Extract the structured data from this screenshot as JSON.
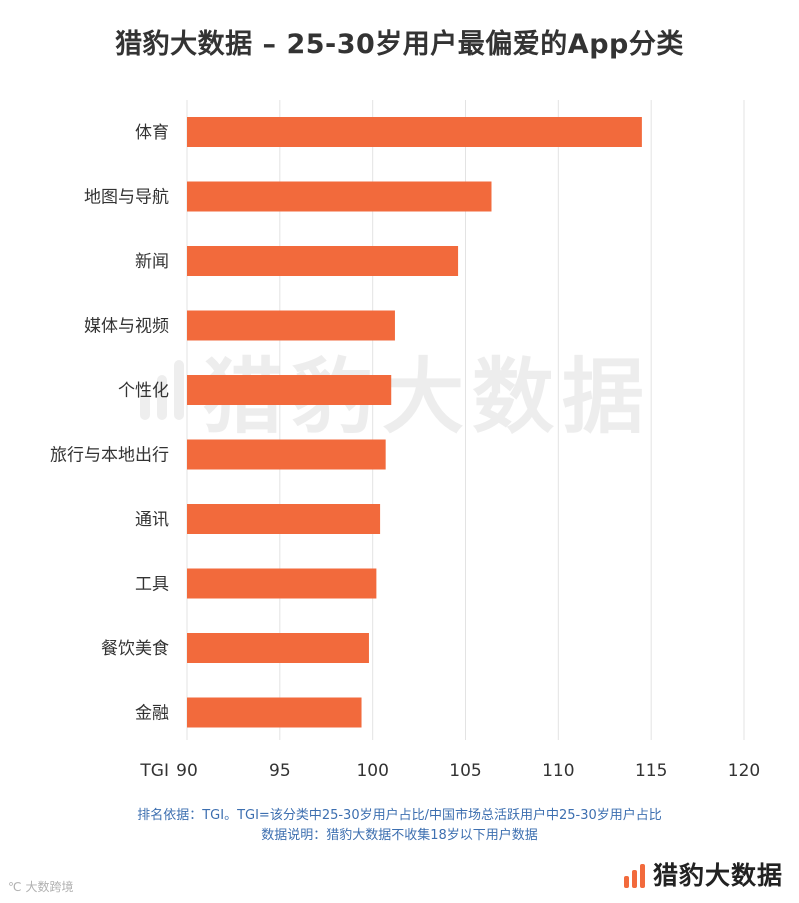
{
  "title": "猎豹大数据 – 25-30岁用户最偏爱的App分类",
  "chart_data": {
    "type": "bar",
    "orientation": "horizontal",
    "title": "猎豹大数据 – 25-30岁用户最偏爱的App分类",
    "xlabel": "TGI",
    "ylabel": "",
    "categories": [
      "体育",
      "地图与导航",
      "新闻",
      "媒体与视频",
      "个性化",
      "旅行与本地出行",
      "通讯",
      "工具",
      "餐饮美食",
      "金融"
    ],
    "values": [
      114.5,
      106.4,
      104.6,
      101.2,
      101.0,
      100.7,
      100.4,
      100.2,
      99.8,
      99.4
    ],
    "xlim": [
      90,
      120
    ],
    "xticks": [
      90,
      95,
      100,
      105,
      110,
      115,
      120
    ],
    "grid": "vertical",
    "legend": "none",
    "bar_color": "#f26a3c",
    "grid_color": "#e3e3e3"
  },
  "watermark": "猎豹大数据",
  "notes": {
    "line1": "排名依据：TGI。TGI=该分类中25-30岁用户占比/中国市场总活跃用户中25-30岁用户占比",
    "line2": "数据说明：猎豹大数据不收集18岁以下用户数据"
  },
  "logo_text": "猎豹大数据",
  "corner_watermark": "大数跨境"
}
